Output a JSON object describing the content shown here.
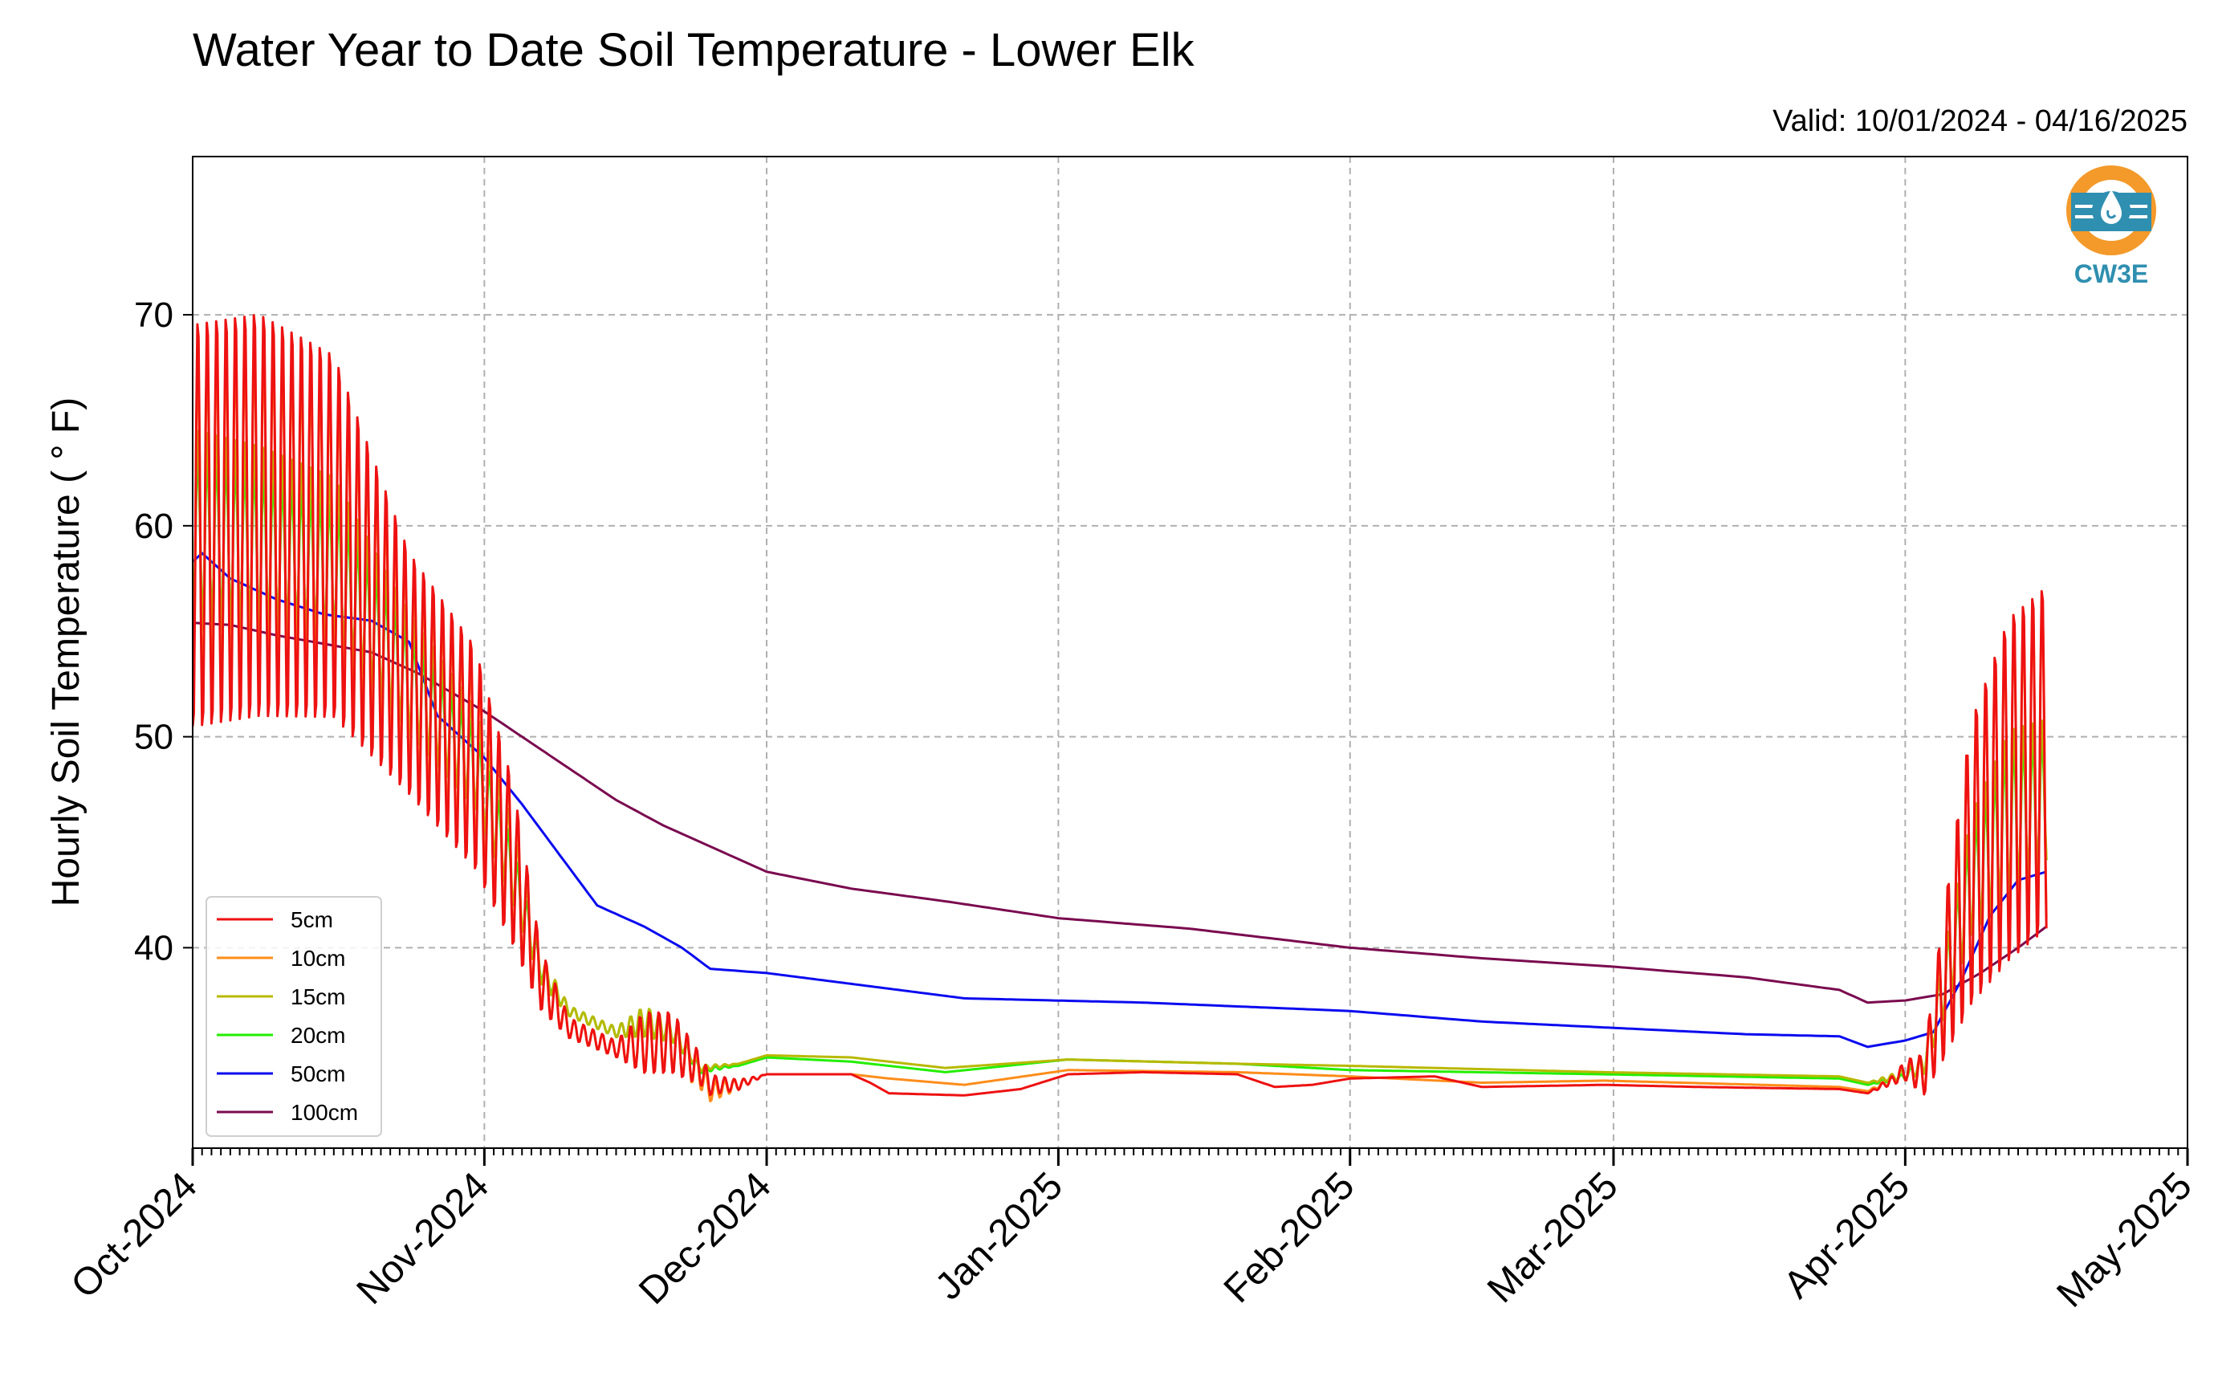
{
  "chart_data": {
    "type": "line",
    "title": "Water Year to Date Soil Temperature - Lower Elk",
    "subtitle": "Valid: 10/01/2024 - 04/16/2025",
    "xlabel": "",
    "ylabel": "Hourly Soil Temperature ( $^\\circ$F)",
    "ylabel_display": "Hourly Soil Temperature ( ° F)",
    "x_axis": {
      "type": "date",
      "range": [
        "2024-10-01",
        "2025-05-01"
      ],
      "ticks": [
        {
          "date": "2024-10-01",
          "label": "Oct-2024"
        },
        {
          "date": "2024-11-01",
          "label": "Nov-2024"
        },
        {
          "date": "2024-12-01",
          "label": "Dec-2024"
        },
        {
          "date": "2025-01-01",
          "label": "Jan-2025"
        },
        {
          "date": "2025-02-01",
          "label": "Feb-2025"
        },
        {
          "date": "2025-03-01",
          "label": "Mar-2025"
        },
        {
          "date": "2025-04-01",
          "label": "Apr-2025"
        },
        {
          "date": "2025-05-01",
          "label": "May-2025"
        }
      ],
      "minor_ticks": "daily"
    },
    "y_axis": {
      "range": [
        30.5,
        77.5
      ],
      "ticks": [
        {
          "value": 40,
          "label": "40"
        },
        {
          "value": 50,
          "label": "50"
        },
        {
          "value": 60,
          "label": "60"
        },
        {
          "value": 70,
          "label": "70"
        }
      ]
    },
    "grid": true,
    "legend_position": "lower-left",
    "logo": {
      "text": "CW3E",
      "colors": {
        "orange": "#f39a2b",
        "teal": "#2f8fb0"
      }
    },
    "series": [
      {
        "name": "5cm",
        "color": "#ee1111",
        "daily_cycle": true,
        "points": [
          [
            "2024-10-01",
            60.0,
            20
          ],
          [
            "2024-10-08",
            60.5,
            20
          ],
          [
            "2024-10-16",
            59.5,
            18
          ],
          [
            "2024-10-24",
            53.0,
            12
          ],
          [
            "2024-10-31",
            49.0,
            11
          ],
          [
            "2024-11-04",
            44.0,
            8
          ],
          [
            "2024-11-07",
            38.5,
            3
          ],
          [
            "2024-11-10",
            36.2,
            1
          ],
          [
            "2024-11-15",
            35.2,
            0.8
          ],
          [
            "2024-11-18",
            35.5,
            3
          ],
          [
            "2024-11-21",
            35.5,
            3
          ],
          [
            "2024-11-24",
            34.2,
            1.5
          ],
          [
            "2024-11-25",
            33.5,
            1
          ],
          [
            "2024-11-28",
            33.5,
            0.5
          ],
          [
            "2024-12-01",
            34.0,
            0
          ],
          [
            "2024-12-10",
            34.0,
            0
          ],
          [
            "2024-12-12",
            33.6,
            0
          ],
          [
            "2024-12-14",
            33.1,
            0
          ],
          [
            "2024-12-22",
            33.0,
            0
          ],
          [
            "2024-12-28",
            33.3,
            0
          ],
          [
            "2025-01-02",
            34.0,
            0
          ],
          [
            "2025-01-10",
            34.1,
            0
          ],
          [
            "2025-01-20",
            34.0,
            0
          ],
          [
            "2025-01-24",
            33.4,
            0
          ],
          [
            "2025-01-28",
            33.5,
            0
          ],
          [
            "2025-02-01",
            33.8,
            0
          ],
          [
            "2025-02-10",
            33.9,
            0
          ],
          [
            "2025-02-15",
            33.4,
            0
          ],
          [
            "2025-02-28",
            33.5,
            0
          ],
          [
            "2025-03-10",
            33.4,
            0
          ],
          [
            "2025-03-25",
            33.3,
            0
          ],
          [
            "2025-03-28",
            33.1,
            0
          ],
          [
            "2025-03-31",
            33.8,
            0.5
          ],
          [
            "2025-04-01",
            34.2,
            1
          ],
          [
            "2025-04-03",
            34.0,
            2
          ],
          [
            "2025-04-05",
            38.0,
            7
          ],
          [
            "2025-04-08",
            44.0,
            14
          ],
          [
            "2025-04-12",
            47.5,
            17
          ],
          [
            "2025-04-16",
            49.0,
            17
          ]
        ]
      },
      {
        "name": "10cm",
        "color": "#ff8c1a",
        "daily_cycle": true,
        "points": [
          [
            "2024-10-01",
            60.0,
            17
          ],
          [
            "2024-10-08",
            60.5,
            17
          ],
          [
            "2024-10-16",
            59.5,
            15
          ],
          [
            "2024-10-24",
            53.0,
            10
          ],
          [
            "2024-10-31",
            49.0,
            9
          ],
          [
            "2024-11-04",
            44.0,
            7
          ],
          [
            "2024-11-07",
            38.5,
            2.5
          ],
          [
            "2024-11-10",
            36.2,
            1
          ],
          [
            "2024-11-15",
            35.2,
            0.8
          ],
          [
            "2024-11-18",
            35.5,
            2.5
          ],
          [
            "2024-11-21",
            35.5,
            2.5
          ],
          [
            "2024-11-24",
            34.0,
            1.5
          ],
          [
            "2024-11-25",
            33.2,
            1
          ],
          [
            "2024-11-28",
            33.5,
            0.5
          ],
          [
            "2024-12-01",
            34.0,
            0
          ],
          [
            "2024-12-10",
            34.0,
            0
          ],
          [
            "2024-12-14",
            33.8,
            0
          ],
          [
            "2024-12-22",
            33.5,
            0
          ],
          [
            "2025-01-02",
            34.2,
            0
          ],
          [
            "2025-01-20",
            34.1,
            0
          ],
          [
            "2025-02-01",
            33.9,
            0
          ],
          [
            "2025-02-15",
            33.6,
            0
          ],
          [
            "2025-02-28",
            33.7,
            0
          ],
          [
            "2025-03-25",
            33.4,
            0
          ],
          [
            "2025-03-28",
            33.2,
            0
          ],
          [
            "2025-03-31",
            33.8,
            0.5
          ],
          [
            "2025-04-01",
            34.2,
            1
          ],
          [
            "2025-04-03",
            34.0,
            1.5
          ],
          [
            "2025-04-05",
            38.0,
            6
          ],
          [
            "2025-04-08",
            44.0,
            14
          ],
          [
            "2025-04-12",
            47.5,
            16
          ],
          [
            "2025-04-16",
            49.0,
            16
          ]
        ]
      },
      {
        "name": "15cm",
        "color": "#b8b800",
        "daily_cycle": true,
        "points": [
          [
            "2024-10-01",
            59.8,
            10
          ],
          [
            "2024-10-08",
            59.5,
            9
          ],
          [
            "2024-10-16",
            58.5,
            8
          ],
          [
            "2024-10-24",
            53.0,
            6
          ],
          [
            "2024-10-31",
            49.0,
            5
          ],
          [
            "2024-11-04",
            44.0,
            4
          ],
          [
            "2024-11-07",
            39.0,
            1.5
          ],
          [
            "2024-11-10",
            37.0,
            0.5
          ],
          [
            "2024-11-15",
            36.0,
            0.5
          ],
          [
            "2024-11-18",
            36.5,
            1.5
          ],
          [
            "2024-11-21",
            36.0,
            1
          ],
          [
            "2024-11-24",
            34.3,
            0.3
          ],
          [
            "2024-11-28",
            34.5,
            0
          ],
          [
            "2024-12-01",
            34.9,
            0
          ],
          [
            "2024-12-10",
            34.8,
            0
          ],
          [
            "2024-12-20",
            34.3,
            0
          ],
          [
            "2025-01-02",
            34.7,
            0
          ],
          [
            "2025-01-20",
            34.5,
            0
          ],
          [
            "2025-02-01",
            34.4,
            0
          ],
          [
            "2025-02-28",
            34.1,
            0
          ],
          [
            "2025-03-25",
            33.9,
            0
          ],
          [
            "2025-03-28",
            33.6,
            0
          ],
          [
            "2025-04-01",
            34.0,
            0.5
          ],
          [
            "2025-04-03",
            34.5,
            1
          ],
          [
            "2025-04-05",
            38.0,
            3
          ],
          [
            "2025-04-08",
            43.5,
            6
          ],
          [
            "2025-04-12",
            46.5,
            8
          ],
          [
            "2025-04-16",
            47.5,
            7
          ]
        ]
      },
      {
        "name": "20cm",
        "color": "#22ee00",
        "daily_cycle": true,
        "points": [
          [
            "2024-10-01",
            59.5,
            8
          ],
          [
            "2024-10-08",
            59.0,
            7
          ],
          [
            "2024-10-16",
            58.0,
            6
          ],
          [
            "2024-10-24",
            52.5,
            5
          ],
          [
            "2024-10-31",
            48.5,
            4
          ],
          [
            "2024-11-04",
            43.5,
            3
          ],
          [
            "2024-11-07",
            39.0,
            1
          ],
          [
            "2024-11-10",
            37.0,
            0.5
          ],
          [
            "2024-11-15",
            36.0,
            0.5
          ],
          [
            "2024-11-18",
            36.5,
            1.5
          ],
          [
            "2024-11-21",
            36.0,
            1
          ],
          [
            "2024-11-24",
            34.2,
            0.3
          ],
          [
            "2024-11-28",
            34.4,
            0
          ],
          [
            "2024-12-01",
            34.8,
            0
          ],
          [
            "2024-12-10",
            34.6,
            0
          ],
          [
            "2024-12-20",
            34.1,
            0
          ],
          [
            "2025-01-02",
            34.7,
            0
          ],
          [
            "2025-01-20",
            34.5,
            0
          ],
          [
            "2025-02-01",
            34.2,
            0
          ],
          [
            "2025-02-28",
            34.0,
            0
          ],
          [
            "2025-03-25",
            33.8,
            0
          ],
          [
            "2025-03-28",
            33.5,
            0
          ],
          [
            "2025-04-01",
            33.9,
            0.3
          ],
          [
            "2025-04-03",
            34.5,
            1
          ],
          [
            "2025-04-05",
            38.0,
            3
          ],
          [
            "2025-04-08",
            43.0,
            5
          ],
          [
            "2025-04-12",
            46.0,
            7
          ],
          [
            "2025-04-16",
            47.0,
            6
          ]
        ]
      },
      {
        "name": "50cm",
        "color": "#0a0af0",
        "daily_cycle": false,
        "points": [
          [
            "2024-10-01",
            58.3
          ],
          [
            "2024-10-02",
            58.7
          ],
          [
            "2024-10-05",
            57.5
          ],
          [
            "2024-10-10",
            56.5
          ],
          [
            "2024-10-15",
            55.8
          ],
          [
            "2024-10-20",
            55.5
          ],
          [
            "2024-10-24",
            54.5
          ],
          [
            "2024-10-27",
            51.0
          ],
          [
            "2024-11-01",
            49.0
          ],
          [
            "2024-11-05",
            46.8
          ],
          [
            "2024-11-08",
            45.0
          ],
          [
            "2024-11-13",
            42.0
          ],
          [
            "2024-11-18",
            41.0
          ],
          [
            "2024-11-22",
            40.0
          ],
          [
            "2024-11-25",
            39.0
          ],
          [
            "2024-12-01",
            38.8
          ],
          [
            "2024-12-15",
            38.0
          ],
          [
            "2024-12-22",
            37.6
          ],
          [
            "2025-01-10",
            37.4
          ],
          [
            "2025-02-01",
            37.0
          ],
          [
            "2025-02-15",
            36.5
          ],
          [
            "2025-03-01",
            36.2
          ],
          [
            "2025-03-15",
            35.9
          ],
          [
            "2025-03-25",
            35.8
          ],
          [
            "2025-03-28",
            35.3
          ],
          [
            "2025-04-01",
            35.6
          ],
          [
            "2025-04-04",
            36.0
          ],
          [
            "2025-04-07",
            38.5
          ],
          [
            "2025-04-10",
            41.5
          ],
          [
            "2025-04-13",
            43.2
          ],
          [
            "2025-04-16",
            43.6
          ]
        ]
      },
      {
        "name": "100cm",
        "color": "#7a0a4f",
        "daily_cycle": false,
        "points": [
          [
            "2024-10-01",
            55.4
          ],
          [
            "2024-10-05",
            55.3
          ],
          [
            "2024-10-10",
            54.8
          ],
          [
            "2024-10-15",
            54.4
          ],
          [
            "2024-10-20",
            54.0
          ],
          [
            "2024-10-25",
            53.0
          ],
          [
            "2024-11-01",
            51.2
          ],
          [
            "2024-11-05",
            50.0
          ],
          [
            "2024-11-10",
            48.5
          ],
          [
            "2024-11-15",
            47.0
          ],
          [
            "2024-11-20",
            45.8
          ],
          [
            "2024-11-25",
            44.8
          ],
          [
            "2024-12-01",
            43.6
          ],
          [
            "2024-12-10",
            42.8
          ],
          [
            "2024-12-20",
            42.2
          ],
          [
            "2025-01-01",
            41.4
          ],
          [
            "2025-01-15",
            40.9
          ],
          [
            "2025-02-01",
            40.0
          ],
          [
            "2025-02-15",
            39.5
          ],
          [
            "2025-03-01",
            39.1
          ],
          [
            "2025-03-15",
            38.6
          ],
          [
            "2025-03-25",
            38.0
          ],
          [
            "2025-03-28",
            37.4
          ],
          [
            "2025-04-01",
            37.5
          ],
          [
            "2025-04-05",
            37.8
          ],
          [
            "2025-04-09",
            38.8
          ],
          [
            "2025-04-13",
            40.0
          ],
          [
            "2025-04-16",
            41.0
          ]
        ]
      }
    ]
  }
}
